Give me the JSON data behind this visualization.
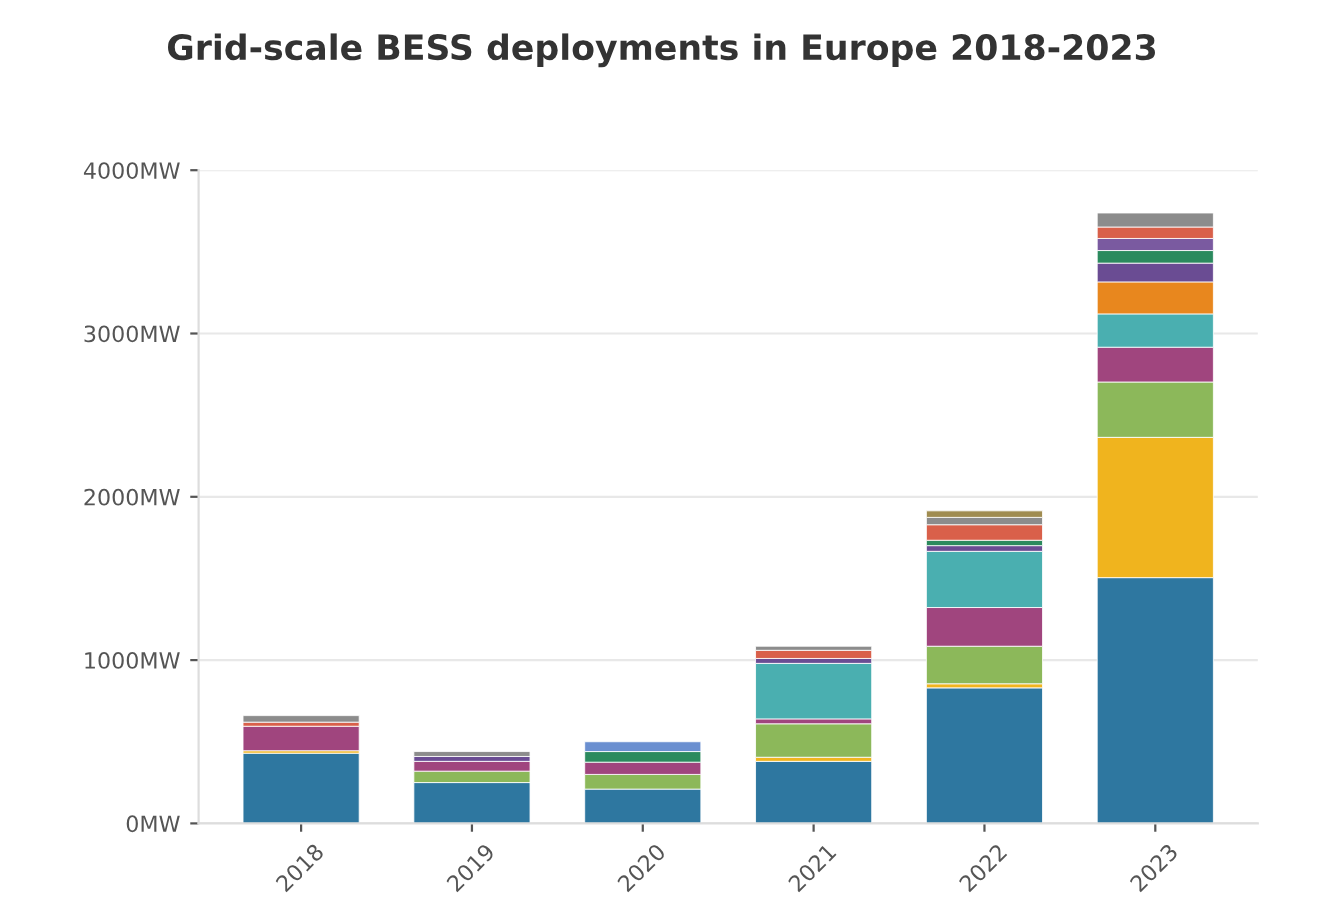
{
  "chart_data": {
    "type": "bar",
    "stacked": true,
    "title": "Grid-scale BESS deployments in Europe 2018-2023",
    "categories": [
      "2018",
      "2019",
      "2020",
      "2021",
      "2022",
      "2023"
    ],
    "series": [
      {
        "color": "#2e77a0",
        "values": [
          430,
          250,
          210,
          380,
          830,
          1505
        ]
      },
      {
        "color": "#f0b41e",
        "values": [
          15,
          null,
          null,
          25,
          25,
          859
        ]
      },
      {
        "color": "#8cb85a",
        "values": [
          null,
          70,
          90,
          205,
          230,
          339
        ]
      },
      {
        "color": "#a0457e",
        "values": [
          150,
          60,
          75,
          30,
          237,
          213
        ]
      },
      {
        "color": "#4aafb0",
        "values": [
          null,
          null,
          null,
          340,
          344,
          204
        ]
      },
      {
        "color": "#e8871e",
        "values": [
          null,
          null,
          null,
          null,
          null,
          196
        ]
      },
      {
        "color": "#6a4c93",
        "values": [
          null,
          30,
          null,
          30,
          35,
          115
        ]
      },
      {
        "color": "#2b8a5e",
        "values": [
          null,
          null,
          65,
          null,
          33,
          77
        ]
      },
      {
        "color": "#7a5aa0",
        "values": [
          null,
          null,
          null,
          null,
          null,
          74
        ]
      },
      {
        "color": "#d9604a",
        "values": [
          25,
          null,
          null,
          50,
          95,
          70
        ]
      },
      {
        "color": "#8c8c8c",
        "values": [
          40,
          30,
          null,
          25,
          45,
          86
        ]
      },
      {
        "color": "#6a8fd0",
        "values": [
          null,
          null,
          60,
          null,
          null,
          null
        ]
      },
      {
        "color": "#a08c50",
        "values": [
          null,
          null,
          null,
          null,
          40,
          null
        ]
      }
    ],
    "ylim": [
      0,
      4000
    ],
    "yticks": [
      {
        "value": 0,
        "label": "0MW"
      },
      {
        "value": 1000,
        "label": "1000MW"
      },
      {
        "value": 2000,
        "label": "2000MW"
      },
      {
        "value": 3000,
        "label": "3000MW"
      },
      {
        "value": 4000,
        "label": "4000MW"
      }
    ],
    "grid": "y"
  }
}
